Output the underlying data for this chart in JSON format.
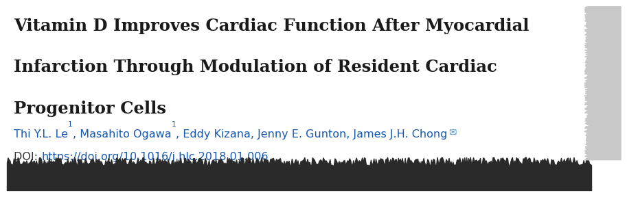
{
  "title_line1": "Vitamin D Improves Cardiac Function After Myocardial",
  "title_line2": "Infarction Through Modulation of Resident Cardiac",
  "title_line3": "Progenitor Cells",
  "doi_label": "DOI: ",
  "doi_url": "https://doi.org/10.1016/j.hlc.2018.01.006",
  "bg_color": "#ffffff",
  "title_color": "#1a1a1a",
  "author_link_color": "#1558b0",
  "doi_link_color": "#1558b0",
  "doi_text_color": "#333333",
  "title_fontsize": 17.5,
  "author_fontsize": 11.5,
  "doi_fontsize": 11.5
}
